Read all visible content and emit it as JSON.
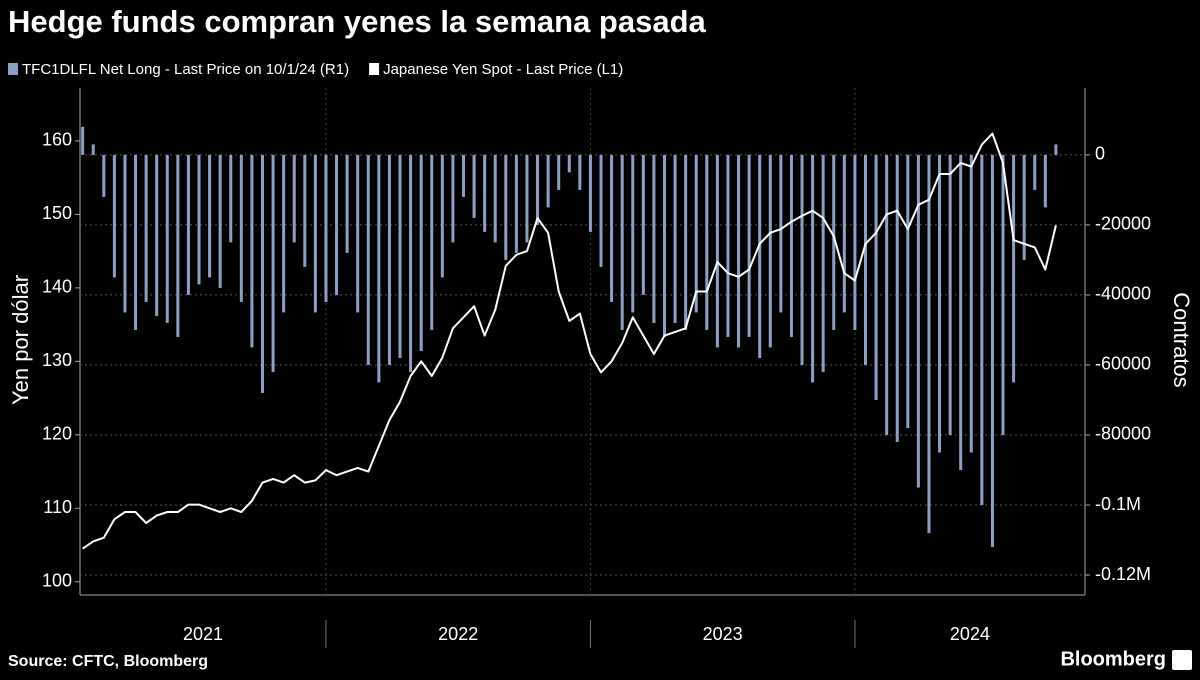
{
  "chart_data": {
    "type": "combo",
    "title": "Hedge funds compran yenes la semana pasada",
    "ylabel": "Yen por dólar",
    "y2label": "Contratos",
    "source": "Source: CFTC, Bloomberg",
    "brand": "Bloomberg",
    "grid": true,
    "x": [
      2021.08,
      2021.12,
      2021.16,
      2021.2,
      2021.24,
      2021.28,
      2021.32,
      2021.36,
      2021.4,
      2021.44,
      2021.48,
      2021.52,
      2021.56,
      2021.6,
      2021.64,
      2021.68,
      2021.72,
      2021.76,
      2021.8,
      2021.84,
      2021.88,
      2021.92,
      2021.96,
      2022.0,
      2022.04,
      2022.08,
      2022.12,
      2022.16,
      2022.2,
      2022.24,
      2022.28,
      2022.32,
      2022.36,
      2022.4,
      2022.44,
      2022.48,
      2022.52,
      2022.56,
      2022.6,
      2022.64,
      2022.68,
      2022.72,
      2022.76,
      2022.8,
      2022.84,
      2022.88,
      2022.92,
      2022.96,
      2023.0,
      2023.04,
      2023.08,
      2023.12,
      2023.16,
      2023.2,
      2023.24,
      2023.28,
      2023.32,
      2023.36,
      2023.4,
      2023.44,
      2023.48,
      2023.52,
      2023.56,
      2023.6,
      2023.64,
      2023.68,
      2023.72,
      2023.76,
      2023.8,
      2023.84,
      2023.88,
      2023.92,
      2023.96,
      2024.0,
      2024.04,
      2024.08,
      2024.12,
      2024.16,
      2024.2,
      2024.24,
      2024.28,
      2024.32,
      2024.36,
      2024.4,
      2024.44,
      2024.48,
      2024.52,
      2024.56,
      2024.6,
      2024.64,
      2024.68,
      2024.72,
      2024.76
    ],
    "xlim": [
      2021.07,
      2024.87
    ],
    "xticks": [
      {
        "value": 2021.5,
        "label": "2021"
      },
      {
        "value": 2022.5,
        "label": "2022"
      },
      {
        "value": 2023.5,
        "label": "2023"
      },
      {
        "value": 2024.5,
        "label": "2024"
      }
    ],
    "ylim": [
      98.2,
      167.2
    ],
    "yticks": [
      100,
      110,
      120,
      130,
      140,
      150,
      160
    ],
    "y2lim": [
      -125700,
      19100
    ],
    "y2ticks": [
      0,
      -20000,
      -40000,
      -60000,
      -80000,
      {
        "value": -100000,
        "label": "-0.1M"
      },
      {
        "value": -120000,
        "label": "-0.12M"
      }
    ],
    "series": [
      {
        "name": "TFC1DLFL Net Long - Last Price on 10/1/24 (R1)",
        "type": "bar",
        "axis": "y2",
        "color": "#8e9fc6",
        "values": [
          8000,
          3000,
          -12000,
          -35000,
          -45000,
          -50000,
          -42000,
          -46000,
          -48000,
          -52000,
          -40000,
          -37000,
          -35000,
          -38000,
          -25000,
          -42000,
          -55000,
          -68000,
          -62000,
          -45000,
          -25000,
          -32000,
          -45000,
          -42000,
          -40000,
          -28000,
          -45000,
          -60000,
          -65000,
          -60000,
          -58000,
          -62000,
          -56000,
          -50000,
          -35000,
          -25000,
          -12000,
          -18000,
          -22000,
          -25000,
          -30000,
          -28000,
          -25000,
          -20000,
          -15000,
          -10000,
          -5000,
          -10000,
          -22000,
          -32000,
          -42000,
          -50000,
          -45000,
          -40000,
          -48000,
          -52000,
          -48000,
          -50000,
          -45000,
          -50000,
          -55000,
          -52000,
          -55000,
          -52000,
          -58000,
          -55000,
          -45000,
          -52000,
          -60000,
          -65000,
          -62000,
          -50000,
          -45000,
          -50000,
          -60000,
          -70000,
          -80000,
          -82000,
          -78000,
          -95000,
          -108000,
          -85000,
          -80000,
          -90000,
          -85000,
          -100000,
          -112000,
          -80000,
          -65000,
          -30000,
          -10000,
          -15000,
          3000
        ]
      },
      {
        "name": "Japanese Yen Spot - Last Price (L1)",
        "type": "line",
        "color": "#ffffff",
        "values": [
          104.5,
          105.5,
          106,
          108.5,
          109.5,
          109.5,
          108,
          109,
          109.5,
          109.5,
          110.5,
          110.5,
          110,
          109.5,
          110,
          109.5,
          111,
          113.5,
          114,
          113.5,
          114.5,
          113.5,
          113.8,
          115.2,
          114.5,
          115,
          115.5,
          115,
          118.5,
          122,
          124.5,
          128,
          130,
          128,
          130.5,
          134.5,
          136,
          137.5,
          133.5,
          137,
          143,
          144.5,
          145,
          149.5,
          147.5,
          139.5,
          135.5,
          136.5,
          131,
          128.5,
          130,
          132.5,
          136,
          133.5,
          131,
          133.5,
          134,
          134.5,
          139.5,
          139.5,
          143.5,
          142,
          141.5,
          142.5,
          146,
          147.5,
          148,
          149,
          149.8,
          150.5,
          149.5,
          147,
          142,
          141,
          146,
          147.5,
          150,
          150.5,
          148,
          151.3,
          152,
          155.5,
          155.5,
          157,
          156.5,
          159.5,
          161,
          157,
          146.5,
          146,
          145.5,
          142.5,
          148.5
        ]
      }
    ]
  }
}
